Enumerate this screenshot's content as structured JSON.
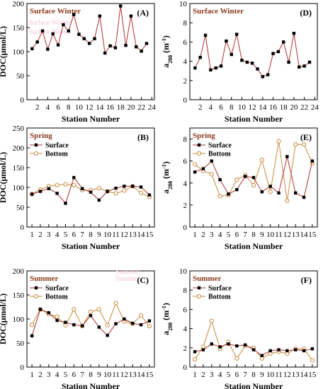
{
  "colors": {
    "surface_line": "#b03030",
    "surface_marker": "#000000",
    "bottom_line": "#c8893a",
    "bottom_marker": "#c8893a",
    "season_text": "#8b3a1a",
    "ghost_text": "#f3c7d6"
  },
  "chart_data": [
    {
      "id": "A",
      "type": "line",
      "panel_label": "(A)",
      "season_label": "Surface Winter",
      "ghost_labels": [
        "Surface Winter",
        "Surface Winter"
      ],
      "ylabel": "DOC(μmol/L)",
      "xlabel": "Station Number",
      "xlim": [
        0,
        24.5
      ],
      "ylim": [
        0,
        200
      ],
      "xticks": [
        2,
        4,
        6,
        8,
        10,
        12,
        14,
        16,
        18,
        20,
        22,
        24
      ],
      "yticks": [
        0,
        50,
        100,
        150,
        200
      ],
      "x": [
        1,
        2,
        3,
        4,
        5,
        6,
        7,
        8,
        9,
        10,
        11,
        12,
        13,
        14,
        15,
        16,
        17,
        18,
        19,
        20,
        21,
        22,
        23
      ],
      "series": [
        {
          "name": "",
          "style": "surface",
          "values": [
            106,
            120,
            143,
            105,
            137,
            114,
            156,
            143,
            177,
            136,
            127,
            117,
            127,
            174,
            97,
            112,
            108,
            195,
            113,
            174,
            110,
            101,
            117
          ]
        }
      ],
      "legend": []
    },
    {
      "id": "D",
      "type": "line",
      "panel_label": "(D)",
      "season_label": "Surface Winter",
      "ghost_labels": [],
      "ylabel": "a280 (m-1)",
      "xlabel": "Station Number",
      "xlim": [
        0,
        24.5
      ],
      "ylim": [
        0,
        10
      ],
      "xticks": [
        2,
        4,
        6,
        8,
        10,
        12,
        14,
        16,
        18,
        20,
        22,
        24
      ],
      "yticks": [
        0,
        2,
        4,
        6,
        8,
        10
      ],
      "x": [
        1,
        2,
        3,
        4,
        5,
        6,
        7,
        8,
        9,
        10,
        11,
        12,
        13,
        14,
        15,
        16,
        17,
        18,
        19,
        20,
        21,
        22,
        23
      ],
      "series": [
        {
          "name": "",
          "style": "surface",
          "values": [
            3.3,
            4.4,
            6.7,
            3.1,
            3.3,
            3.5,
            6.1,
            4.7,
            6.8,
            4.1,
            3.9,
            3.8,
            3.2,
            2.4,
            2.6,
            4.8,
            5.0,
            6.0,
            3.9,
            6.9,
            3.4,
            3.5,
            3.9
          ]
        }
      ],
      "legend": []
    },
    {
      "id": "B",
      "type": "line",
      "panel_label": "(B)",
      "season_label": "Spring",
      "ghost_labels": [],
      "ylabel": "DOC(μmol/L)",
      "xlabel": "Station Number",
      "xlim": [
        0.4,
        15.6
      ],
      "ylim": [
        0,
        250
      ],
      "xticks": [
        1,
        2,
        3,
        4,
        5,
        6,
        7,
        8,
        9,
        10,
        11,
        12,
        13,
        14,
        15
      ],
      "yticks": [
        0,
        50,
        100,
        150,
        200,
        250
      ],
      "x": [
        1,
        2,
        3,
        4,
        5,
        6,
        7,
        8,
        9,
        10,
        11,
        12,
        13,
        14,
        15
      ],
      "series": [
        {
          "name": "Surface",
          "style": "surface",
          "values": [
            83,
            90,
            97,
            85,
            60,
            125,
            97,
            88,
            68,
            90,
            98,
            103,
            103,
            101,
            81
          ]
        },
        {
          "name": "Bottom",
          "style": "bottom",
          "values": [
            83,
            95,
            103,
            106,
            108,
            106,
            93,
            93,
            98,
            90,
            85,
            92,
            103,
            86,
            76
          ]
        }
      ],
      "legend": [
        "Surface",
        "Bottom"
      ]
    },
    {
      "id": "E",
      "type": "line",
      "panel_label": "(E)",
      "season_label": "Spring",
      "ghost_labels": [],
      "ylabel": "a280 (m-1)",
      "xlabel": "Station Number",
      "xlim": [
        0.4,
        15.6
      ],
      "ylim": [
        0,
        9
      ],
      "xticks": [
        1,
        2,
        3,
        4,
        5,
        6,
        7,
        8,
        9,
        10,
        11,
        12,
        13,
        14,
        15
      ],
      "yticks": [
        0,
        2,
        4,
        6,
        8
      ],
      "x": [
        1,
        2,
        3,
        4,
        5,
        6,
        7,
        8,
        9,
        10,
        11,
        12,
        13,
        14,
        15
      ],
      "series": [
        {
          "name": "Surface",
          "style": "surface",
          "values": [
            5.0,
            5.3,
            6.0,
            4.3,
            3.0,
            3.4,
            4.6,
            4.5,
            3.2,
            3.7,
            3.1,
            6.4,
            3.1,
            2.7,
            6.0
          ]
        },
        {
          "name": "Bottom",
          "style": "bottom",
          "values": [
            5.7,
            5.1,
            4.8,
            2.8,
            2.9,
            4.3,
            4.7,
            3.8,
            6.1,
            3.2,
            7.8,
            2.4,
            7.5,
            7.5,
            5.8
          ]
        }
      ],
      "legend": [
        "Surface",
        "Bottom"
      ]
    },
    {
      "id": "C",
      "type": "line",
      "panel_label": "(C)",
      "season_label": "Summer",
      "ghost_labels": [
        "Summer",
        "Summer"
      ],
      "ylabel": "DOC(μmol/L)",
      "xlabel": "Station Number",
      "xlim": [
        0.4,
        15.6
      ],
      "ylim": [
        0,
        200
      ],
      "xticks": [
        1,
        2,
        3,
        4,
        5,
        6,
        7,
        8,
        9,
        10,
        11,
        12,
        13,
        14,
        15
      ],
      "yticks": [
        0,
        50,
        100,
        150,
        200
      ],
      "x": [
        1,
        2,
        3,
        4,
        5,
        6,
        7,
        8,
        9,
        10,
        11,
        12,
        13,
        14,
        15
      ],
      "series": [
        {
          "name": "Surface",
          "style": "surface",
          "values": [
            65,
            120,
            113,
            97,
            93,
            88,
            86,
            107,
            83,
            66,
            90,
            100,
            91,
            88,
            96
          ]
        },
        {
          "name": "Bottom",
          "style": "bottom",
          "values": [
            88,
            120,
            110,
            105,
            87,
            120,
            85,
            115,
            120,
            87,
            133,
            95,
            90,
            107,
            85
          ]
        }
      ],
      "legend": [
        "Surface",
        "Bottom"
      ]
    },
    {
      "id": "F",
      "type": "line",
      "panel_label": "(F)",
      "season_label": "Summer",
      "ghost_labels": [],
      "ylabel": "a280 (m-1)",
      "xlabel": "Station Number",
      "xlim": [
        0.4,
        15.6
      ],
      "ylim": [
        0,
        10
      ],
      "xticks": [
        1,
        2,
        3,
        4,
        5,
        6,
        7,
        8,
        9,
        10,
        11,
        12,
        13,
        14,
        15
      ],
      "yticks": [
        0,
        2,
        4,
        6,
        8,
        10
      ],
      "x": [
        1,
        2,
        3,
        4,
        5,
        6,
        7,
        8,
        9,
        10,
        11,
        12,
        13,
        14,
        15
      ],
      "series": [
        {
          "name": "Surface",
          "style": "surface",
          "values": [
            1.6,
            1.8,
            2.4,
            2.1,
            2.4,
            2.2,
            2.3,
            1.8,
            1.2,
            1.7,
            1.8,
            1.7,
            1.8,
            1.7,
            1.9
          ]
        },
        {
          "name": "Bottom",
          "style": "bottom",
          "values": [
            0.8,
            2.1,
            4.8,
            1.9,
            2.6,
            0.9,
            2.2,
            2.0,
            0.9,
            1.4,
            1.6,
            1.4,
            1.9,
            1.9,
            0.7
          ]
        }
      ],
      "legend": [
        "Surface",
        "Bottom"
      ]
    }
  ]
}
